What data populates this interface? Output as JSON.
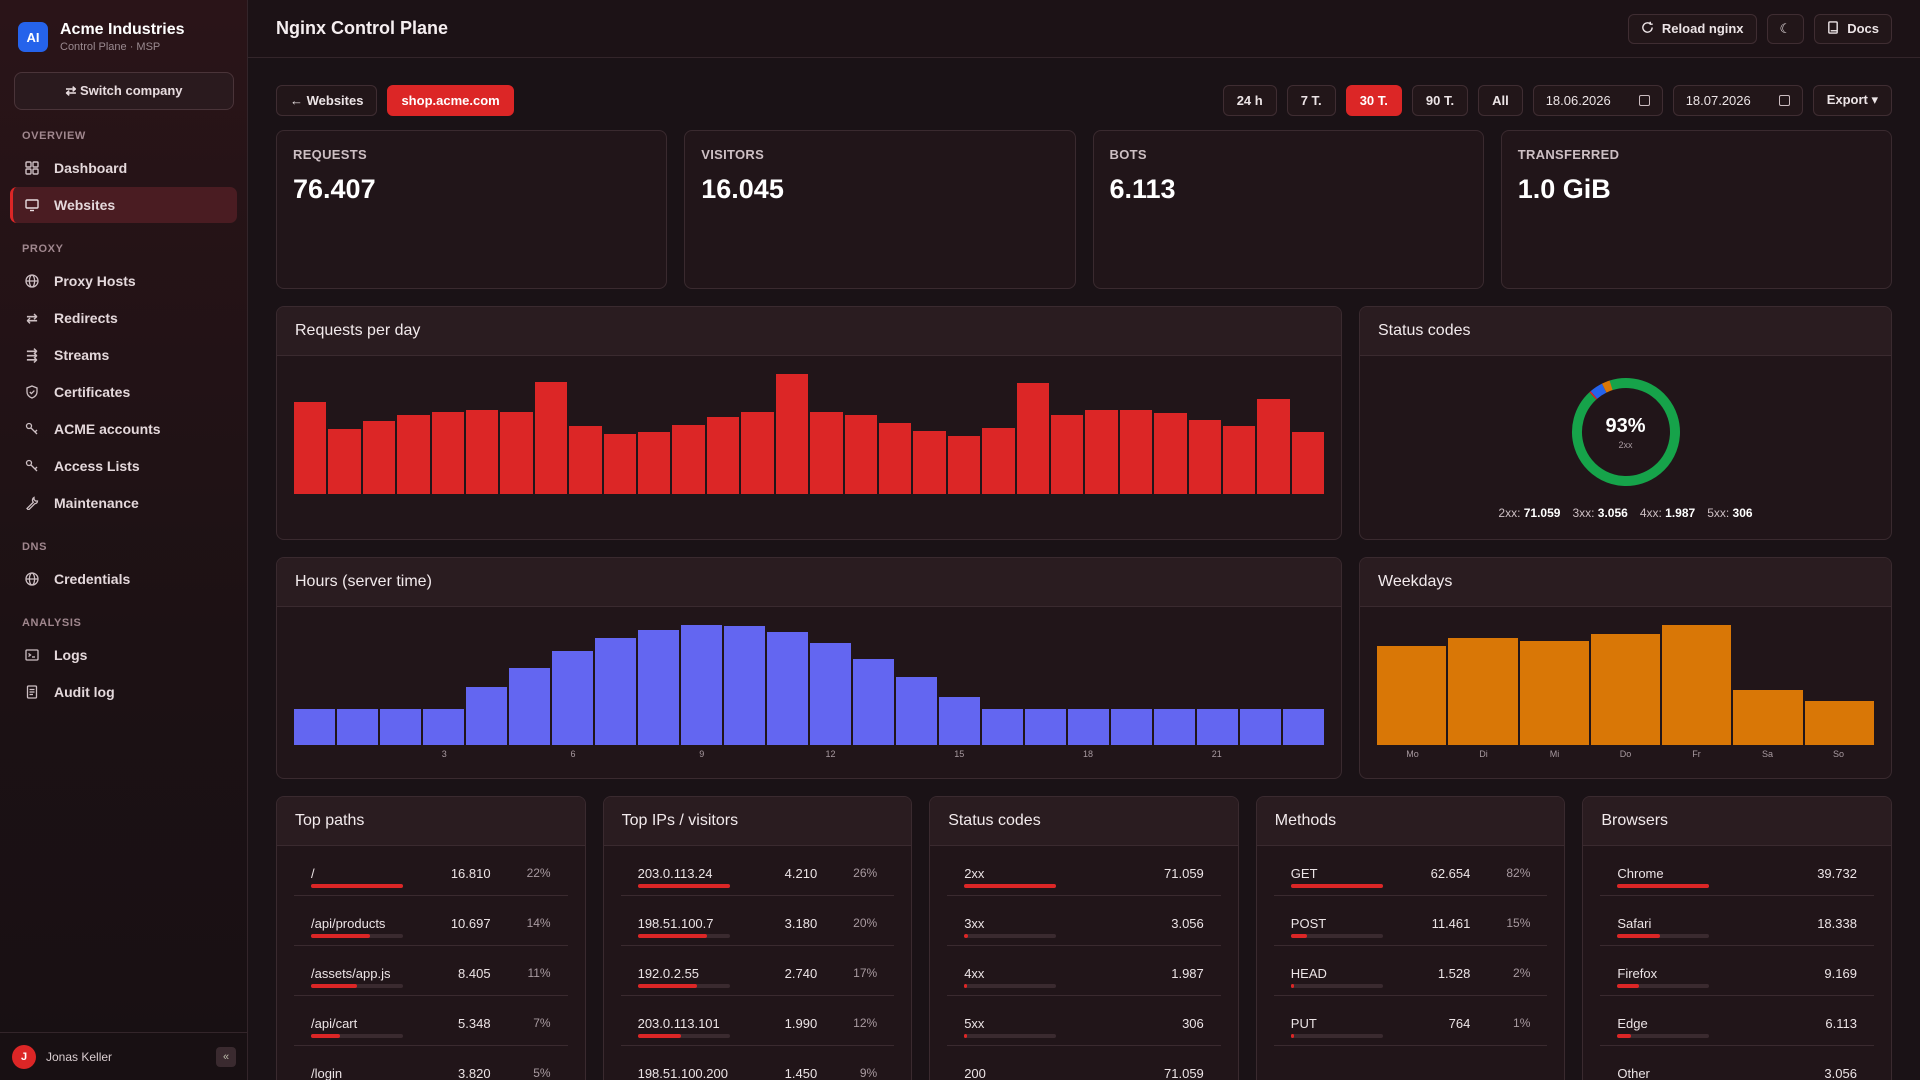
{
  "brand": {
    "logo": "AI",
    "name": "Acme Industries",
    "sub": "Control Plane · MSP"
  },
  "switch_label": "⇄ Switch company",
  "nav": {
    "overview_label": "OVERVIEW",
    "dashboard": "Dashboard",
    "websites": "Websites",
    "proxy_label": "PROXY",
    "proxy_hosts": "Proxy Hosts",
    "redirects": "Redirects",
    "streams": "Streams",
    "certificates": "Certificates",
    "acme_accounts": "ACME accounts",
    "access_lists": "Access Lists",
    "maintenance": "Maintenance",
    "dns_label": "DNS",
    "credentials": "Credentials",
    "analysis_label": "ANALYSIS",
    "logs": "Logs",
    "audit_log": "Audit log"
  },
  "user": {
    "initial": "J",
    "name": "Jonas Keller",
    "collapse": "«"
  },
  "header": {
    "title": "Nginx Control Plane",
    "reload": "Reload nginx",
    "theme": "☾",
    "docs": "Docs"
  },
  "toolbar": {
    "back": "← Websites",
    "site": "shop.acme.com",
    "range_24h": "24 h",
    "range_7": "7 T.",
    "range_30": "30 T.",
    "range_90": "90 T.",
    "range_all": "All",
    "date_from": "18.06.2026",
    "date_to": "18.07.2026",
    "export": "Export ▾"
  },
  "kpis": {
    "requests_label": "REQUESTS",
    "requests": "76.407",
    "visitors_label": "VISITORS",
    "visitors": "16.045",
    "bots_label": "BOTS",
    "bots": "6.113",
    "transferred_label": "TRANSFERRED",
    "transferred": "1.0 GiB"
  },
  "panels": {
    "requests_per_day": "Requests per day",
    "status_codes": "Status codes",
    "hours": "Hours (server time)",
    "weekdays": "Weekdays",
    "top_paths": "Top paths",
    "top_ips": "Top IPs / visitors",
    "status_codes_table": "Status codes",
    "methods": "Methods",
    "browsers": "Browsers"
  },
  "chart_data": [
    {
      "type": "bar",
      "title": "Requests per day",
      "values": [
        2900,
        2050,
        2300,
        2500,
        2600,
        2650,
        2600,
        3550,
        2150,
        1900,
        1950,
        2200,
        2450,
        2600,
        3800,
        2600,
        2500,
        2250,
        2000,
        1850,
        2100,
        3500,
        2500,
        2650,
        2650,
        2550,
        2350,
        2150,
        3000,
        1950
      ],
      "color": "#dc2626"
    },
    {
      "type": "pie",
      "title": "Status codes",
      "center_value": "93%",
      "center_sub": "2xx",
      "slices": [
        {
          "label": "2xx:",
          "value": 71059,
          "display": "71.059",
          "color": "#16a34a"
        },
        {
          "label": "3xx:",
          "value": 3056,
          "display": "3.056",
          "color": "#2563eb"
        },
        {
          "label": "4xx:",
          "value": 1987,
          "display": "1.987",
          "color": "#d97706"
        },
        {
          "label": "5xx:",
          "value": 306,
          "display": "306",
          "color": "#dc2626"
        }
      ]
    },
    {
      "type": "bar",
      "title": "Hours (server time)",
      "categories": [
        "0",
        "1",
        "2",
        "3",
        "4",
        "5",
        "6",
        "7",
        "8",
        "9",
        "10",
        "11",
        "12",
        "13",
        "14",
        "15",
        "16",
        "17",
        "18",
        "19",
        "20",
        "21",
        "22",
        "23"
      ],
      "values": [
        30,
        30,
        30,
        30,
        48,
        64,
        78,
        89,
        96,
        100,
        99,
        94,
        85,
        72,
        57,
        40,
        30,
        30,
        30,
        30,
        30,
        30,
        30,
        30
      ],
      "tick_labels": [
        {
          "i": 3,
          "label": "3"
        },
        {
          "i": 6,
          "label": "6"
        },
        {
          "i": 9,
          "label": "9"
        },
        {
          "i": 12,
          "label": "12"
        },
        {
          "i": 15,
          "label": "15"
        },
        {
          "i": 18,
          "label": "18"
        },
        {
          "i": 21,
          "label": "21"
        }
      ],
      "color": "#6366f1"
    },
    {
      "type": "bar",
      "title": "Weekdays",
      "categories": [
        "Mo",
        "Di",
        "Mi",
        "Do",
        "Fr",
        "Sa",
        "So"
      ],
      "values": [
        82,
        88,
        86,
        92,
        99,
        45,
        36
      ],
      "color": "#d97706"
    }
  ],
  "tables": {
    "paths": [
      {
        "name": "/",
        "value": "16.810",
        "pct": "22%",
        "frac": 1.0
      },
      {
        "name": "/api/products",
        "value": "10.697",
        "pct": "14%",
        "frac": 0.64
      },
      {
        "name": "/assets/app.js",
        "value": "8.405",
        "pct": "11%",
        "frac": 0.5
      },
      {
        "name": "/api/cart",
        "value": "5.348",
        "pct": "7%",
        "frac": 0.32
      },
      {
        "name": "/login",
        "value": "3.820",
        "pct": "5%",
        "frac": 0.23
      }
    ],
    "ips": [
      {
        "name": "203.0.113.24",
        "value": "4.210",
        "pct": "26%",
        "frac": 1.0
      },
      {
        "name": "198.51.100.7",
        "value": "3.180",
        "pct": "20%",
        "frac": 0.75
      },
      {
        "name": "192.0.2.55",
        "value": "2.740",
        "pct": "17%",
        "frac": 0.65
      },
      {
        "name": "203.0.113.101",
        "value": "1.990",
        "pct": "12%",
        "frac": 0.47
      },
      {
        "name": "198.51.100.200",
        "value": "1.450",
        "pct": "9%",
        "frac": 0.34
      }
    ],
    "status": [
      {
        "name": "2xx",
        "value": "71.059",
        "frac": 1.0
      },
      {
        "name": "3xx",
        "value": "3.056",
        "frac": 0.04
      },
      {
        "name": "4xx",
        "value": "1.987",
        "frac": 0.03
      },
      {
        "name": "5xx",
        "value": "306",
        "frac": 0.01
      },
      {
        "name": "200",
        "value": "71.059",
        "frac": 1.0
      }
    ],
    "methods": [
      {
        "name": "GET",
        "value": "62.654",
        "pct": "82%",
        "frac": 1.0
      },
      {
        "name": "POST",
        "value": "11.461",
        "pct": "15%",
        "frac": 0.18
      },
      {
        "name": "HEAD",
        "value": "1.528",
        "pct": "2%",
        "frac": 0.03
      },
      {
        "name": "PUT",
        "value": "764",
        "pct": "1%",
        "frac": 0.01
      }
    ],
    "browsers": [
      {
        "name": "Chrome",
        "value": "39.732",
        "frac": 1.0
      },
      {
        "name": "Safari",
        "value": "18.338",
        "frac": 0.46
      },
      {
        "name": "Firefox",
        "value": "9.169",
        "frac": 0.23
      },
      {
        "name": "Edge",
        "value": "6.113",
        "frac": 0.15
      },
      {
        "name": "Other",
        "value": "3.056",
        "frac": 0.08
      }
    ]
  }
}
